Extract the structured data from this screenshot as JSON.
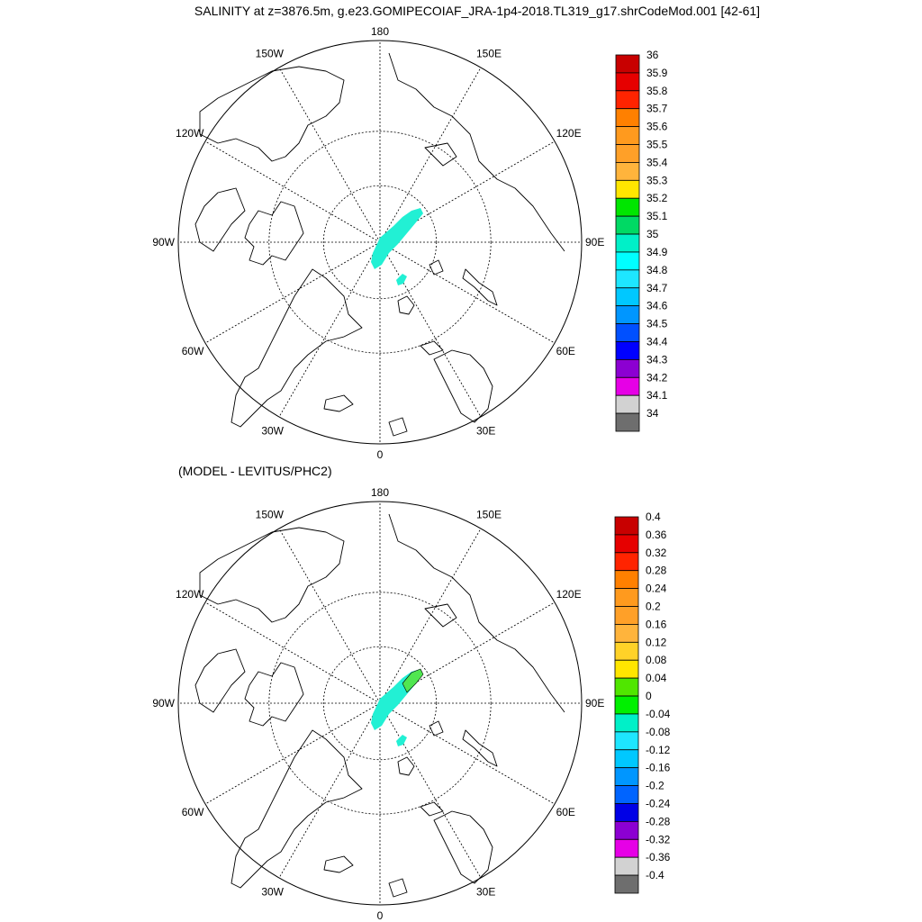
{
  "figure": {
    "title": "SALINITY at z=3876.5m, g.e23.GOMIPECOIAF_JRA-1p4-2018.TL319_g17.shrCodeMod.001 [42-61]",
    "panel2_title": "(MODEL - LEVITUS/PHC2)"
  },
  "map": {
    "projection": "north-polar-stereographic",
    "meridian_labels": [
      {
        "lon": 180,
        "text": "180"
      },
      {
        "lon": -150,
        "text": "150W"
      },
      {
        "lon": 150,
        "text": "150E"
      },
      {
        "lon": -120,
        "text": "120W"
      },
      {
        "lon": 120,
        "text": "120E"
      },
      {
        "lon": -90,
        "text": "90W"
      },
      {
        "lon": 90,
        "text": "90E"
      },
      {
        "lon": -60,
        "text": "60W"
      },
      {
        "lon": 60,
        "text": "60E"
      },
      {
        "lon": -30,
        "text": "30W"
      },
      {
        "lon": 30,
        "text": "30E"
      },
      {
        "lon": 0,
        "text": "0"
      }
    ]
  },
  "panel1_colorbar": {
    "labels": [
      "36",
      "35.9",
      "35.8",
      "35.7",
      "35.6",
      "35.5",
      "35.4",
      "35.3",
      "35.2",
      "35.1",
      "35",
      "34.9",
      "34.8",
      "34.7",
      "34.6",
      "34.5",
      "34.4",
      "34.3",
      "34.2",
      "34.1",
      "34"
    ],
    "colors": [
      "#c80000",
      "#e60000",
      "#ff2400",
      "#ff8000",
      "#ff9a1e",
      "#ffa028",
      "#ffb43c",
      "#ffe600",
      "#00e600",
      "#00d964",
      "#00f0c8",
      "#00ffff",
      "#1ee6ff",
      "#00c8ff",
      "#0096ff",
      "#0050ff",
      "#0000ff",
      "#8c00d2",
      "#e600e6",
      "#d2d2d2",
      "#6e6e6e"
    ]
  },
  "panel2_colorbar": {
    "labels": [
      "0.4",
      "0.36",
      "0.32",
      "0.28",
      "0.24",
      "0.2",
      "0.16",
      "0.12",
      "0.08",
      "0.04",
      "0",
      "-0.04",
      "-0.08",
      "-0.12",
      "-0.16",
      "-0.2",
      "-0.24",
      "-0.28",
      "-0.32",
      "-0.36",
      "-0.4"
    ],
    "colors": [
      "#c80000",
      "#e60000",
      "#ff2400",
      "#ff8000",
      "#ff9a1e",
      "#ffa028",
      "#ffb43c",
      "#ffd228",
      "#ffe600",
      "#50e600",
      "#00f000",
      "#00f0c8",
      "#1ee6ff",
      "#00c8ff",
      "#0096ff",
      "#0064ff",
      "#0000e6",
      "#8c00d2",
      "#e600e6",
      "#d2d2d2",
      "#6e6e6e"
    ]
  },
  "data_fields": {
    "panel1_patch_color": "#22f0d4",
    "panel2_patch_color": "#22f0d4",
    "panel2_positive_color": "#50e650"
  }
}
